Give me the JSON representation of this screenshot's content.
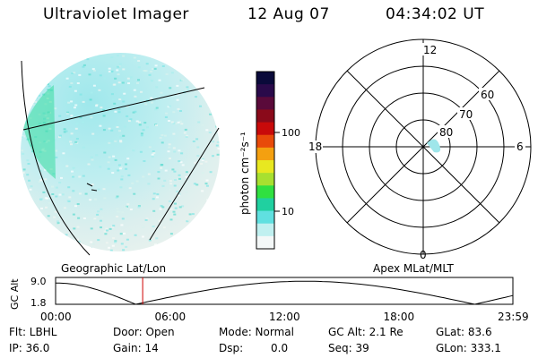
{
  "header": {
    "instrument": "Ultraviolet Imager",
    "date": "12 Aug 07",
    "time": "04:34:02 UT"
  },
  "colorbar": {
    "label": "photon cm⁻²s⁻¹",
    "ticks": [
      "100",
      "10"
    ],
    "colors": [
      "#0a0a3a",
      "#2a0a4a",
      "#5a0a3a",
      "#8a0a1a",
      "#c80a0a",
      "#e84a0a",
      "#f4a010",
      "#e8e820",
      "#a8e030",
      "#30e040",
      "#20d0a0",
      "#60e0e0",
      "#c0f0f0",
      "#f4f8f8"
    ]
  },
  "polar": {
    "labels": {
      "top": "12",
      "left": "18",
      "right": "6",
      "bottom": "0"
    },
    "rings": [
      "60",
      "70",
      "80"
    ]
  },
  "timeline": {
    "left_label": "Geographic Lat/Lon",
    "right_label": "Apex MLat/MLT",
    "y_axis": "GC Alt",
    "y_ticks": [
      "9.0",
      "1.8"
    ],
    "x_ticks": [
      "00:00",
      "06:00",
      "12:00",
      "18:00",
      "23:59"
    ],
    "current_hour": 4.57
  },
  "info": {
    "flt": "Flt: LBHL",
    "ip": "IP: 36.0",
    "door": "Door: Open",
    "gain": "Gain: 14",
    "mode": "Mode: Normal",
    "dsp_label": "Dsp:",
    "dsp_value": "0.0",
    "gc_alt": "GC Alt: 2.1 Re",
    "seq": "Seq: 39",
    "glat": "GLat: 83.6",
    "glon": "GLon: 333.1"
  }
}
